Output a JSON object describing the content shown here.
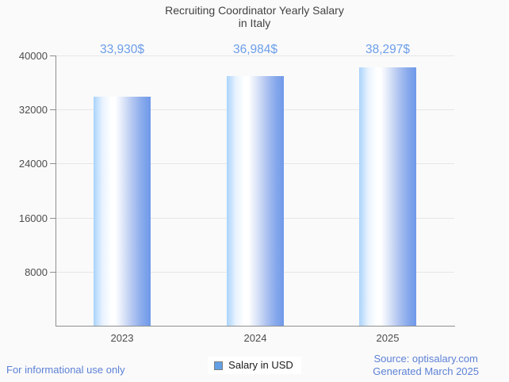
{
  "title_lines": [
    "Recruiting Coordinator Yearly Salary",
    "in Italy"
  ],
  "chart_data": {
    "type": "bar",
    "title": "Recruiting Coordinator Yearly Salary in Italy",
    "categories": [
      "2023",
      "2024",
      "2025"
    ],
    "values": [
      33930,
      36984,
      38297
    ],
    "value_labels": [
      "33,930$",
      "36,984$",
      "38,297$"
    ],
    "series_name": "Salary in USD",
    "xlabel": "",
    "ylabel": "",
    "ylim": [
      0,
      40000
    ],
    "yticks": [
      8000,
      16000,
      24000,
      32000,
      40000
    ],
    "grid": true,
    "legend_position": "bottom"
  },
  "legend": {
    "label": "Salary in USD"
  },
  "footer": {
    "left": "For informational use only",
    "source": "Source: optisalary.com",
    "generated": "Generated March 2025"
  },
  "colors": {
    "background": "#fafafa",
    "title_text": "#424242",
    "value_label_text": "#6d9eea",
    "axis_label_text": "#4d4d4d",
    "axis_line": "#8f8f8f",
    "gridline": "#e6e6e6",
    "bar_gradient_left": "#a9d3fb",
    "bar_gradient_mid": "#ffffff",
    "bar_gradient_right": "#6f99e9",
    "legend_marker_fill": "#64a0e5",
    "legend_marker_border": "#7d7d7d",
    "footer_text": "#5d81d6"
  }
}
